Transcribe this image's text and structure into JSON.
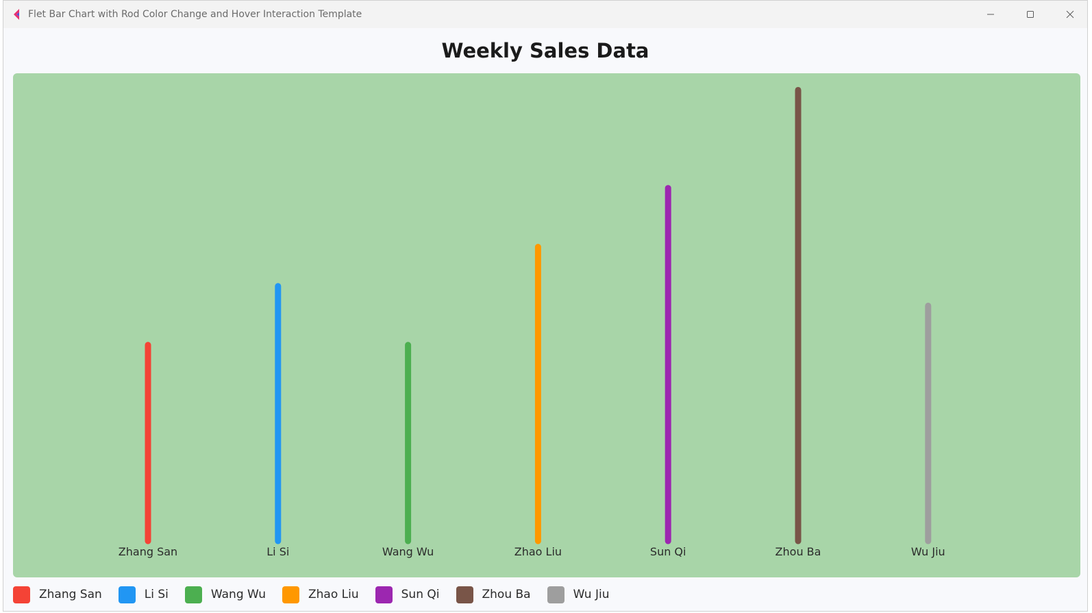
{
  "window": {
    "title": "Flet Bar Chart with Rod Color Change and Hover Interaction Template"
  },
  "page": {
    "title": "Weekly Sales Data"
  },
  "legend": [
    {
      "label": "Zhang San",
      "color": "#f44336"
    },
    {
      "label": "Li Si",
      "color": "#2196f3"
    },
    {
      "label": "Wang Wu",
      "color": "#4caf50"
    },
    {
      "label": "Zhao Liu",
      "color": "#ff9800"
    },
    {
      "label": "Sun Qi",
      "color": "#9c27b0"
    },
    {
      "label": "Zhou Ba",
      "color": "#795548"
    },
    {
      "label": "Wu Jiu",
      "color": "#9e9e9e"
    }
  ],
  "chart_data": {
    "type": "bar",
    "title": "Weekly Sales Data",
    "categories": [
      "Zhang San",
      "Li Si",
      "Wang Wu",
      "Zhao Liu",
      "Sun Qi",
      "Zhou Ba",
      "Wu Jiu"
    ],
    "values": [
      50,
      65,
      50,
      75,
      90,
      115,
      60
    ],
    "colors": [
      "#f44336",
      "#2196f3",
      "#4caf50",
      "#ff9800",
      "#9c27b0",
      "#795548",
      "#9e9e9e"
    ],
    "ylim": [
      0,
      117
    ],
    "background": "#a8d5a8",
    "grid": false,
    "legend_position": "bottom-left"
  }
}
